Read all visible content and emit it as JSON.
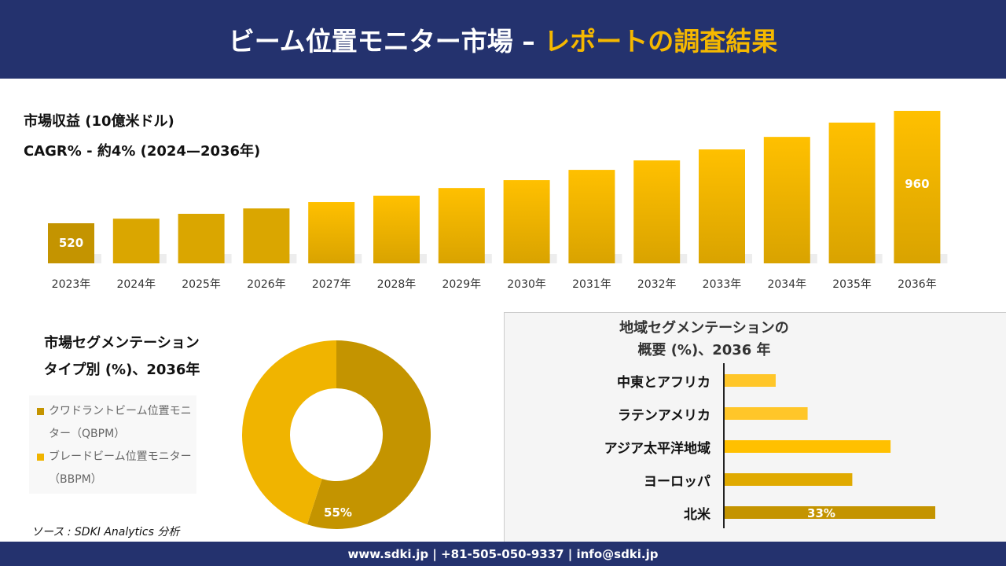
{
  "header": {
    "title_main": "ビーム位置モニター市場 –",
    "title_accent": "レポートの調査結果"
  },
  "footer": {
    "text": "www.sdki.jp | +81-505-050-9337 | info@sdki.jp"
  },
  "colors": {
    "navy": "#24326e",
    "accent": "#f5b800",
    "dark_gold": "#c49400",
    "gold": "#f0b400"
  },
  "source": "ソース : SDKI Analytics 分析",
  "chart_data": [
    {
      "type": "bar",
      "title": "市場収益 (10億米ドル)",
      "subtitle": "CAGR% - 約4% (2024—2036年)",
      "categories": [
        "2023年",
        "2024年",
        "2025年",
        "2026年",
        "2027年",
        "2028年",
        "2029年",
        "2030年",
        "2031年",
        "2032年",
        "2033年",
        "2034年",
        "2035年",
        "2036年"
      ],
      "values": [
        520,
        538,
        557,
        578,
        603,
        628,
        658,
        689,
        729,
        766,
        809,
        858,
        914,
        960
      ],
      "data_labels": {
        "0": "520",
        "13": "960"
      }
    },
    {
      "type": "pie",
      "title_lines": [
        "市場セグメンテーション",
        "タイプ別 (%)、2036年"
      ],
      "slices": [
        {
          "name": "クワドラントビーム位置モニター（QBPM）",
          "value": 55,
          "color": "#c49400",
          "label": "55%"
        },
        {
          "name": "ブレードビーム位置モニター（BBPM）",
          "value": 45,
          "color": "#f0b400"
        }
      ]
    },
    {
      "type": "bar",
      "orientation": "horizontal",
      "title_lines": [
        "地域セグメンテーションの",
        "概要 (%)、2036 年"
      ],
      "categories": [
        "中東とアフリカ",
        "ラテンアメリカ",
        "アジア太平洋地域",
        "ヨーロッパ",
        "北米"
      ],
      "values": [
        8,
        13,
        26,
        20,
        33
      ],
      "colors": [
        "#ffc629",
        "#ffc629",
        "#ffc000",
        "#e0aa00",
        "#c49400"
      ],
      "data_labels": {
        "4": "33%"
      }
    }
  ]
}
